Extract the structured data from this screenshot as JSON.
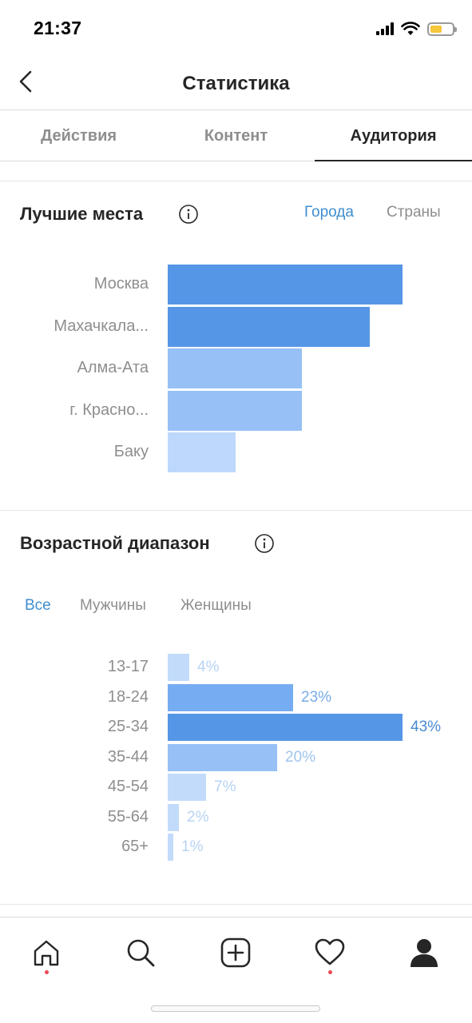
{
  "status_bar": {
    "time": "21:37"
  },
  "header": {
    "title": "Статистика"
  },
  "tabs": [
    {
      "label": "Действия",
      "active": false
    },
    {
      "label": "Контент",
      "active": false
    },
    {
      "label": "Аудитория",
      "active": true
    }
  ],
  "top_places": {
    "title": "Лучшие места",
    "toggles": [
      {
        "label": "Города",
        "active": true
      },
      {
        "label": "Страны",
        "active": false
      }
    ]
  },
  "age_range": {
    "title": "Возрастной диапазон",
    "filters": [
      {
        "label": "Все",
        "active": true
      },
      {
        "label": "Мужчины",
        "active": false
      },
      {
        "label": "Женщины",
        "active": false
      }
    ]
  },
  "chart_data": [
    {
      "type": "bar",
      "orientation": "horizontal",
      "categories": [
        "Москва",
        "Махачкала...",
        "Алма-Ата",
        "г. Красно...",
        "Баку"
      ],
      "values": [
        100,
        86,
        57,
        57,
        29
      ],
      "colors": [
        "#5596e6",
        "#5596e6",
        "#96c0f6",
        "#96c0f6",
        "#bdd8fb"
      ]
    },
    {
      "type": "bar",
      "orientation": "horizontal",
      "categories": [
        "13-17",
        "18-24",
        "25-34",
        "35-44",
        "45-54",
        "55-64",
        "65+"
      ],
      "values": [
        4,
        23,
        43,
        20,
        7,
        2,
        1
      ],
      "value_labels": [
        "4%",
        "23%",
        "43%",
        "20%",
        "7%",
        "2%",
        "1%"
      ],
      "colors": [
        "#c2dbfb",
        "#76acf1",
        "#5596e6",
        "#96c0f6",
        "#c2dbfb",
        "#c2dbfb",
        "#c2dbfb"
      ],
      "label_colors": [
        "#b7d3f4",
        "#78ace7",
        "#4a8ad2",
        "#9fc4ee",
        "#b7d3f4",
        "#b7d3f4",
        "#b7d3f4"
      ]
    }
  ],
  "bottom_nav": [
    {
      "icon": "home-icon",
      "dot": true
    },
    {
      "icon": "search-icon",
      "dot": false
    },
    {
      "icon": "add-post-icon",
      "dot": false
    },
    {
      "icon": "heart-icon",
      "dot": true
    },
    {
      "icon": "profile-icon",
      "dot": false
    }
  ]
}
